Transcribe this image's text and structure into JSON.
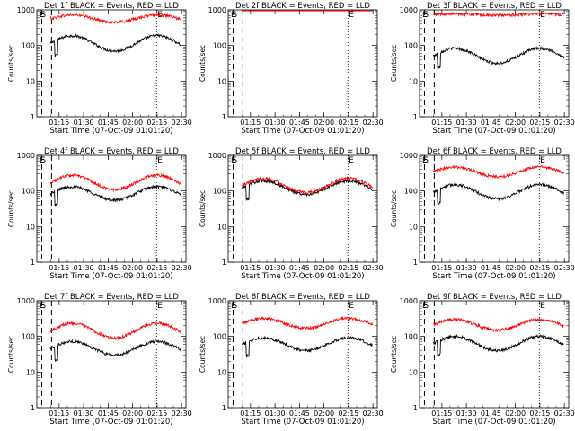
{
  "chart_data": [
    {
      "type": "line",
      "title": "Det 1f BLACK = Events, RED = LLD",
      "xlabel": "Start Time (07-Oct-09 01:01:20)",
      "ylabel": "Counts/sec",
      "yscale": "log",
      "ylim": [
        1,
        1000
      ],
      "y_ticks": [
        "1",
        "10",
        "100",
        "1000"
      ],
      "x_ticks": [
        "01:15",
        "01:30",
        "01:45",
        "02:00",
        "02:15",
        "02:30"
      ],
      "markers": [
        "E",
        "S",
        "E"
      ],
      "series": [
        {
          "color": "#000000",
          "base": 70,
          "amp": 2.7
        },
        {
          "color": "#ff0000",
          "base": 450,
          "amp": 1.6
        }
      ]
    },
    {
      "type": "line",
      "title": "Det 2f BLACK = Events, RED = LLD",
      "xlabel": "Start Time (07-Oct-09 01:01:20)",
      "ylabel": "Counts/sec",
      "yscale": "log",
      "ylim": [
        1,
        1000
      ],
      "y_ticks": [
        "1",
        "10",
        "100",
        "1000"
      ],
      "x_ticks": [
        "01:15",
        "01:30",
        "01:45",
        "02:00",
        "02:15",
        "02:30"
      ],
      "markers": [
        "E",
        "S",
        "E"
      ],
      "series": [
        {
          "color": "#000000",
          "base": 1050,
          "amp": 1.05
        },
        {
          "color": "#ff0000",
          "base": 1250,
          "amp": 1.05
        }
      ]
    },
    {
      "type": "line",
      "title": "Det 3f BLACK = Events, RED = LLD",
      "xlabel": "Start Time (07-Oct-09 01:01:20)",
      "ylabel": "Counts/sec",
      "yscale": "log",
      "ylim": [
        1,
        1000
      ],
      "y_ticks": [
        "1",
        "10",
        "100",
        "1000"
      ],
      "x_ticks": [
        "01:15",
        "01:30",
        "01:45",
        "02:00",
        "02:15",
        "02:30"
      ],
      "markers": [
        "E",
        "S",
        "E"
      ],
      "series": [
        {
          "color": "#000000",
          "base": 32,
          "amp": 2.6
        },
        {
          "color": "#ff0000",
          "base": 700,
          "amp": 1.1
        }
      ]
    },
    {
      "type": "line",
      "title": "Det 4f BLACK = Events, RED = LLD",
      "xlabel": "Start Time (07-Oct-09 01:01:20)",
      "ylabel": "Counts/sec",
      "yscale": "log",
      "ylim": [
        1,
        1000
      ],
      "y_ticks": [
        "1",
        "10",
        "100",
        "1000"
      ],
      "x_ticks": [
        "01:15",
        "01:30",
        "01:45",
        "02:00",
        "02:15",
        "02:30"
      ],
      "markers": [
        "E",
        "S",
        "E"
      ],
      "series": [
        {
          "color": "#000000",
          "base": 55,
          "amp": 2.4
        },
        {
          "color": "#ff0000",
          "base": 110,
          "amp": 2.5
        }
      ]
    },
    {
      "type": "line",
      "title": "Det 5f BLACK = Events, RED = LLD",
      "xlabel": "Start Time (07-Oct-09 01:01:20)",
      "ylabel": "Counts/sec",
      "yscale": "log",
      "ylim": [
        1,
        1000
      ],
      "y_ticks": [
        "1",
        "10",
        "100",
        "1000"
      ],
      "x_ticks": [
        "01:15",
        "01:30",
        "01:45",
        "02:00",
        "02:15",
        "02:30"
      ],
      "markers": [
        "E",
        "S",
        "E"
      ],
      "series": [
        {
          "color": "#000000",
          "base": 80,
          "amp": 2.4
        },
        {
          "color": "#ff0000",
          "base": 90,
          "amp": 2.5
        }
      ]
    },
    {
      "type": "line",
      "title": "Det 6f BLACK = Events, RED = LLD",
      "xlabel": "Start Time (07-Oct-09 01:01:20)",
      "ylabel": "Counts/sec",
      "yscale": "log",
      "ylim": [
        1,
        1000
      ],
      "y_ticks": [
        "1",
        "10",
        "100",
        "1000"
      ],
      "x_ticks": [
        "01:15",
        "01:30",
        "01:45",
        "02:00",
        "02:15",
        "02:30"
      ],
      "markers": [
        "E",
        "S",
        "E"
      ],
      "series": [
        {
          "color": "#000000",
          "base": 60,
          "amp": 2.5
        },
        {
          "color": "#ff0000",
          "base": 250,
          "amp": 1.9
        }
      ]
    },
    {
      "type": "line",
      "title": "Det 7f BLACK = Events, RED = LLD",
      "xlabel": "Start Time (07-Oct-09 01:01:20)",
      "ylabel": "Counts/sec",
      "yscale": "log",
      "ylim": [
        1,
        1000
      ],
      "y_ticks": [
        "1",
        "10",
        "100",
        "1000"
      ],
      "x_ticks": [
        "01:15",
        "01:30",
        "01:45",
        "02:00",
        "02:15",
        "02:30"
      ],
      "markers": [
        "E",
        "S",
        "E"
      ],
      "series": [
        {
          "color": "#000000",
          "base": 30,
          "amp": 2.4
        },
        {
          "color": "#ff0000",
          "base": 90,
          "amp": 2.6
        }
      ]
    },
    {
      "type": "line",
      "title": "Det 8f BLACK = Events, RED = LLD",
      "xlabel": "Start Time (07-Oct-09 01:01:20)",
      "ylabel": "Counts/sec",
      "yscale": "log",
      "ylim": [
        1,
        1000
      ],
      "y_ticks": [
        "1",
        "10",
        "100",
        "1000"
      ],
      "x_ticks": [
        "01:15",
        "01:30",
        "01:45",
        "02:00",
        "02:15",
        "02:30"
      ],
      "markers": [
        "E",
        "S",
        "E"
      ],
      "series": [
        {
          "color": "#000000",
          "base": 40,
          "amp": 2.3
        },
        {
          "color": "#ff0000",
          "base": 170,
          "amp": 1.9
        }
      ]
    },
    {
      "type": "line",
      "title": "Det 9f BLACK = Events, RED = LLD",
      "xlabel": "Start Time (07-Oct-09 01:01:20)",
      "ylabel": "Counts/sec",
      "yscale": "log",
      "ylim": [
        1,
        1000
      ],
      "y_ticks": [
        "1",
        "10",
        "100",
        "1000"
      ],
      "x_ticks": [
        "01:15",
        "01:30",
        "01:45",
        "02:00",
        "02:15",
        "02:30"
      ],
      "markers": [
        "E",
        "S",
        "E"
      ],
      "series": [
        {
          "color": "#000000",
          "base": 40,
          "amp": 2.5
        },
        {
          "color": "#ff0000",
          "base": 150,
          "amp": 2.0
        }
      ]
    }
  ]
}
